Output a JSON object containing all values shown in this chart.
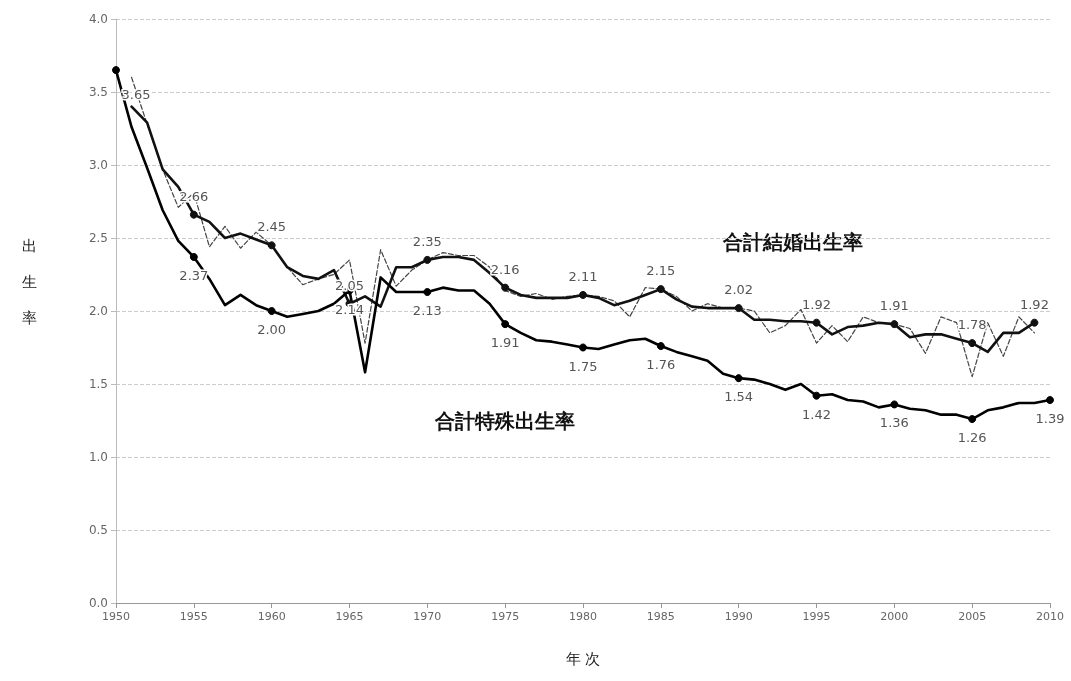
{
  "chart_data": {
    "type": "line",
    "xlabel": "年 次",
    "ylabel": "出生率",
    "xlim": [
      1950,
      2010
    ],
    "xticks": [
      1950,
      1955,
      1960,
      1965,
      1970,
      1975,
      1980,
      1985,
      1990,
      1995,
      2000,
      2005,
      2010
    ],
    "ylim": [
      0,
      4
    ],
    "yticks": [
      {
        "value": 0,
        "label": "0.0"
      },
      0.5,
      {
        "value": 1,
        "label": "1.0"
      },
      1.5,
      {
        "value": 2,
        "label": "2.0"
      },
      2.5,
      {
        "value": 3,
        "label": "3.0"
      },
      3.5,
      {
        "value": 4,
        "label": "4.0"
      }
    ],
    "grid": "y",
    "legend": false,
    "line_style": "solid",
    "series": [
      {
        "name": "合計結婚出生率",
        "color": "#111111",
        "x": [
          1951,
          1952,
          1953,
          1954,
          1955,
          1956,
          1957,
          1958,
          1959,
          1960,
          1961,
          1962,
          1963,
          1964,
          1965,
          1966,
          1967,
          1968,
          1969,
          1970,
          1971,
          1972,
          1973,
          1974,
          1975,
          1976,
          1977,
          1978,
          1979,
          1980,
          1981,
          1982,
          1983,
          1984,
          1985,
          1986,
          1987,
          1988,
          1989,
          1990,
          1991,
          1992,
          1993,
          1994,
          1995,
          1996,
          1997,
          1998,
          1999,
          2000,
          2001,
          2002,
          2003,
          2004,
          2005,
          2006,
          2007,
          2008,
          2009
        ],
        "values": [
          3.4,
          3.29,
          2.97,
          2.85,
          2.66,
          2.61,
          2.5,
          2.53,
          2.49,
          2.45,
          2.3,
          2.24,
          2.22,
          2.28,
          2.05,
          2.1,
          2.03,
          2.3,
          2.3,
          2.35,
          2.37,
          2.37,
          2.35,
          2.26,
          2.16,
          2.11,
          2.09,
          2.09,
          2.09,
          2.11,
          2.09,
          2.04,
          2.07,
          2.11,
          2.15,
          2.08,
          2.03,
          2.02,
          2.02,
          2.02,
          1.94,
          1.94,
          1.93,
          1.93,
          1.92,
          1.84,
          1.89,
          1.9,
          1.92,
          1.91,
          1.82,
          1.84,
          1.84,
          1.81,
          1.78,
          1.72,
          1.85,
          1.85,
          1.92
        ],
        "value_labels": [
          null,
          null,
          null,
          null,
          "2.66",
          null,
          null,
          null,
          null,
          "2.45",
          null,
          null,
          null,
          null,
          "2.05",
          null,
          null,
          null,
          null,
          "2.35",
          null,
          null,
          null,
          null,
          "2.16",
          null,
          null,
          null,
          null,
          "2.11",
          null,
          null,
          null,
          null,
          "2.15",
          null,
          null,
          null,
          null,
          "2.02",
          null,
          null,
          null,
          null,
          "1.92",
          null,
          null,
          null,
          null,
          "1.91",
          null,
          null,
          null,
          null,
          "1.78",
          null,
          null,
          null,
          "1.92"
        ]
      },
      {
        "color": "#444444",
        "line_style": "dashed",
        "x": [
          1951,
          1952,
          1953,
          1954,
          1955,
          1956,
          1957,
          1958,
          1959,
          1960,
          1961,
          1962,
          1963,
          1964,
          1965,
          1966,
          1967,
          1968,
          1969,
          1970,
          1971,
          1972,
          1973,
          1974,
          1975,
          1976,
          1977,
          1978,
          1979,
          1980,
          1981,
          1982,
          1983,
          1984,
          1985,
          1986,
          1987,
          1988,
          1989,
          1990,
          1991,
          1992,
          1993,
          1994,
          1995,
          1996,
          1997,
          1998,
          1999,
          2000,
          2001,
          2002,
          2003,
          2004,
          2005,
          2006,
          2007,
          2008,
          2009
        ],
        "values": [
          3.6,
          3.28,
          2.97,
          2.71,
          2.81,
          2.44,
          2.58,
          2.43,
          2.54,
          2.45,
          2.3,
          2.18,
          2.22,
          2.25,
          2.35,
          1.78,
          2.42,
          2.17,
          2.28,
          2.35,
          2.4,
          2.38,
          2.38,
          2.3,
          2.14,
          2.1,
          2.12,
          2.08,
          2.1,
          2.11,
          2.1,
          2.07,
          1.96,
          2.16,
          2.15,
          2.1,
          2.0,
          2.05,
          2.02,
          2.02,
          2.0,
          1.85,
          1.9,
          2.01,
          1.78,
          1.9,
          1.79,
          1.96,
          1.92,
          1.91,
          1.88,
          1.71,
          1.96,
          1.92,
          1.55,
          1.92,
          1.69,
          1.96,
          1.85
        ]
      },
      {
        "name": "合計特殊出生率",
        "color": "#000000",
        "x": [
          1950,
          1951,
          1952,
          1953,
          1954,
          1955,
          1956,
          1957,
          1958,
          1959,
          1960,
          1961,
          1962,
          1963,
          1964,
          1965,
          1966,
          1967,
          1968,
          1969,
          1970,
          1971,
          1972,
          1973,
          1974,
          1975,
          1976,
          1977,
          1978,
          1979,
          1980,
          1981,
          1982,
          1983,
          1984,
          1985,
          1986,
          1987,
          1988,
          1989,
          1990,
          1991,
          1992,
          1993,
          1994,
          1995,
          1996,
          1997,
          1998,
          1999,
          2000,
          2001,
          2002,
          2003,
          2004,
          2005,
          2006,
          2007,
          2008,
          2009,
          2010
        ],
        "values": [
          3.65,
          3.26,
          2.98,
          2.69,
          2.48,
          2.37,
          2.22,
          2.04,
          2.11,
          2.04,
          2.0,
          1.96,
          1.98,
          2.0,
          2.05,
          2.14,
          1.58,
          2.23,
          2.13,
          2.13,
          2.13,
          2.16,
          2.14,
          2.14,
          2.05,
          1.91,
          1.85,
          1.8,
          1.79,
          1.77,
          1.75,
          1.74,
          1.77,
          1.8,
          1.81,
          1.76,
          1.72,
          1.69,
          1.66,
          1.57,
          1.54,
          1.53,
          1.5,
          1.46,
          1.5,
          1.42,
          1.43,
          1.39,
          1.38,
          1.34,
          1.36,
          1.33,
          1.32,
          1.29,
          1.29,
          1.26,
          1.32,
          1.34,
          1.37,
          1.37,
          1.39
        ],
        "value_labels": [
          "3.65",
          null,
          null,
          null,
          null,
          "2.37",
          null,
          null,
          null,
          null,
          "2.00",
          null,
          null,
          null,
          null,
          "2.14",
          null,
          null,
          null,
          null,
          "2.13",
          null,
          null,
          null,
          null,
          "1.91",
          null,
          null,
          null,
          null,
          "1.75",
          null,
          null,
          null,
          null,
          "1.76",
          null,
          null,
          null,
          null,
          "1.54",
          null,
          null,
          null,
          null,
          "1.42",
          null,
          null,
          null,
          null,
          "1.36",
          null,
          null,
          null,
          null,
          "1.26",
          null,
          null,
          null,
          null,
          "1.39"
        ]
      }
    ]
  }
}
